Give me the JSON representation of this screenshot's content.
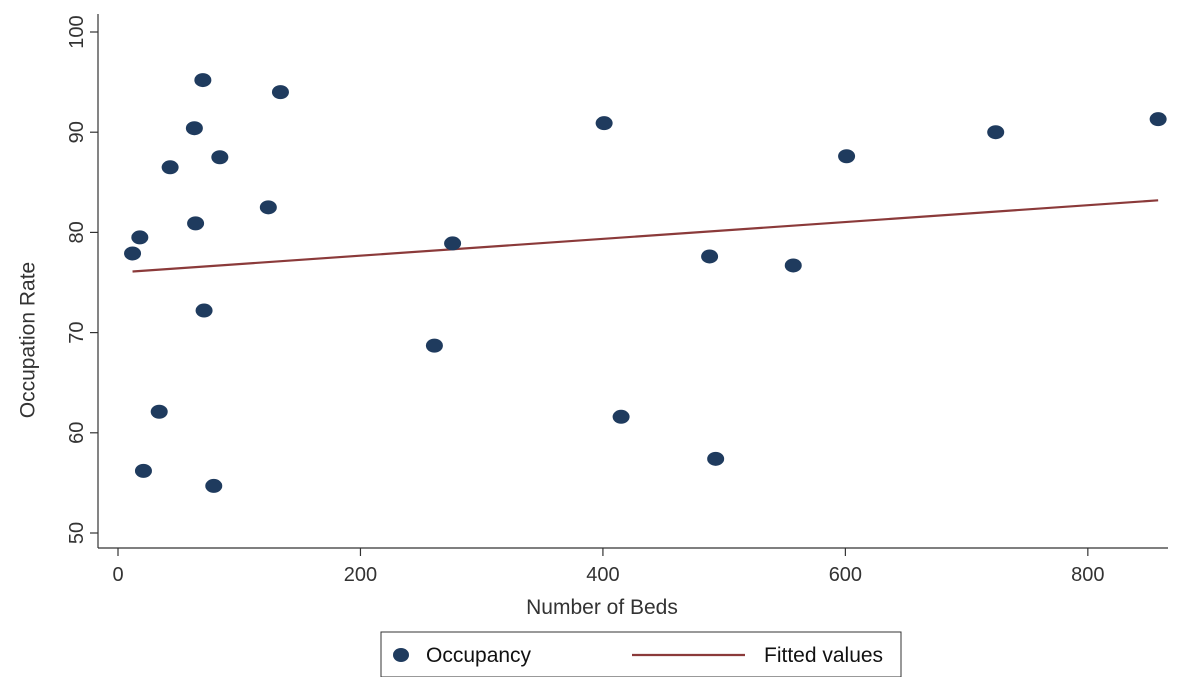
{
  "chart_data": {
    "type": "scatter",
    "xlabel": "Number of Beds",
    "ylabel": "Occupation Rate",
    "xlim": [
      0,
      862
    ],
    "ylim": [
      50,
      100
    ],
    "xticks": [
      0,
      200,
      400,
      600,
      800
    ],
    "yticks": [
      50,
      60,
      70,
      80,
      90,
      100
    ],
    "grid": false,
    "legend_position": "bottom",
    "series": [
      {
        "name": "Occupancy",
        "kind": "scatter",
        "color": "#1f3b5e",
        "points": [
          {
            "x": 12,
            "y": 77.9
          },
          {
            "x": 18,
            "y": 79.5
          },
          {
            "x": 21,
            "y": 56.2
          },
          {
            "x": 34,
            "y": 62.1
          },
          {
            "x": 43,
            "y": 86.5
          },
          {
            "x": 63,
            "y": 90.4
          },
          {
            "x": 64,
            "y": 80.9
          },
          {
            "x": 70,
            "y": 95.2
          },
          {
            "x": 71,
            "y": 72.2
          },
          {
            "x": 79,
            "y": 54.7
          },
          {
            "x": 84,
            "y": 87.5
          },
          {
            "x": 124,
            "y": 82.5
          },
          {
            "x": 134,
            "y": 94.0
          },
          {
            "x": 261,
            "y": 68.7
          },
          {
            "x": 276,
            "y": 78.9
          },
          {
            "x": 401,
            "y": 90.9
          },
          {
            "x": 415,
            "y": 61.6
          },
          {
            "x": 488,
            "y": 77.6
          },
          {
            "x": 493,
            "y": 57.4
          },
          {
            "x": 557,
            "y": 76.7
          },
          {
            "x": 601,
            "y": 87.6
          },
          {
            "x": 724,
            "y": 90.0
          },
          {
            "x": 858,
            "y": 91.3
          }
        ]
      },
      {
        "name": "Fitted values",
        "kind": "line",
        "color": "#8b3a3a",
        "points": [
          {
            "x": 12,
            "y": 76.1
          },
          {
            "x": 858,
            "y": 83.2
          }
        ]
      }
    ]
  }
}
